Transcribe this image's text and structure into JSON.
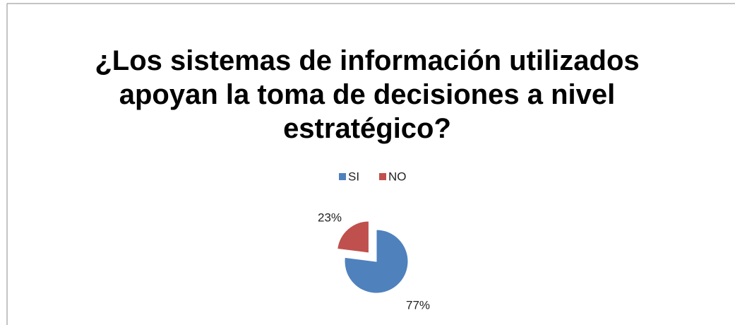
{
  "chart_data": {
    "type": "pie",
    "title": "¿Los sistemas de información utilizados apoyan la toma de decisiones a nivel estratégico?",
    "categories": [
      "SI",
      "NO"
    ],
    "values": [
      77,
      23
    ],
    "value_labels": [
      "77%",
      "23%"
    ],
    "colors": [
      "#4f81bd",
      "#c0504d"
    ],
    "legend": "top"
  }
}
